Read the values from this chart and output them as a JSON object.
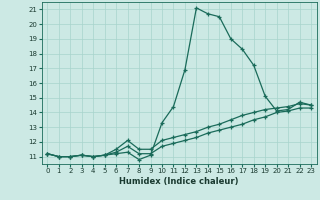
{
  "xlabel": "Humidex (Indice chaleur)",
  "xlim": [
    -0.5,
    23.5
  ],
  "ylim": [
    10.5,
    21.5
  ],
  "yticks": [
    11,
    12,
    13,
    14,
    15,
    16,
    17,
    18,
    19,
    20,
    21
  ],
  "xticks": [
    0,
    1,
    2,
    3,
    4,
    5,
    6,
    7,
    8,
    9,
    10,
    11,
    12,
    13,
    14,
    15,
    16,
    17,
    18,
    19,
    20,
    21,
    22,
    23
  ],
  "bg_color": "#cce9e4",
  "grid_color": "#a8d4cc",
  "line_color": "#1a6b5a",
  "x": [
    0,
    1,
    2,
    3,
    4,
    5,
    6,
    7,
    8,
    9,
    10,
    11,
    12,
    13,
    14,
    15,
    16,
    17,
    18,
    19,
    20,
    21,
    22,
    23
  ],
  "line1": [
    11.2,
    11.0,
    11.0,
    11.1,
    11.0,
    11.1,
    11.2,
    11.3,
    10.8,
    11.1,
    13.3,
    14.4,
    16.9,
    21.1,
    20.7,
    20.5,
    19.0,
    18.3,
    17.2,
    15.1,
    14.1,
    14.2,
    14.7,
    14.5
  ],
  "line2": [
    11.2,
    11.0,
    11.0,
    11.1,
    11.0,
    11.1,
    11.5,
    12.1,
    11.5,
    11.5,
    12.1,
    12.3,
    12.5,
    12.7,
    13.0,
    13.2,
    13.5,
    13.8,
    14.0,
    14.2,
    14.3,
    14.4,
    14.6,
    14.5
  ],
  "line3": [
    11.2,
    11.0,
    11.0,
    11.1,
    11.0,
    11.1,
    11.3,
    11.7,
    11.2,
    11.2,
    11.7,
    11.9,
    12.1,
    12.3,
    12.6,
    12.8,
    13.0,
    13.2,
    13.5,
    13.7,
    14.0,
    14.1,
    14.3,
    14.3
  ]
}
